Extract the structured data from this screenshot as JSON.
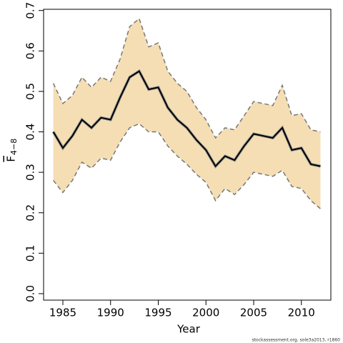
{
  "chart_data": {
    "type": "line-band",
    "xlabel": "Year",
    "ylabel": "F",
    "ylabel_sub": "4−8",
    "footnote": "stockassessment.org, sole3a2013, r1860",
    "x": [
      1984,
      1985,
      1986,
      1987,
      1988,
      1989,
      1990,
      1991,
      1992,
      1993,
      1994,
      1995,
      1996,
      1997,
      1998,
      1999,
      2000,
      2001,
      2002,
      2003,
      2004,
      2005,
      2006,
      2007,
      2008,
      2009,
      2010,
      2011,
      2012
    ],
    "values": [
      0.4,
      0.36,
      0.39,
      0.43,
      0.41,
      0.435,
      0.43,
      0.485,
      0.535,
      0.55,
      0.505,
      0.51,
      0.46,
      0.43,
      0.41,
      0.38,
      0.355,
      0.315,
      0.34,
      0.33,
      0.365,
      0.395,
      0.39,
      0.385,
      0.41,
      0.355,
      0.36,
      0.32,
      0.315
    ],
    "upper": [
      0.52,
      0.47,
      0.49,
      0.535,
      0.51,
      0.535,
      0.525,
      0.58,
      0.66,
      0.68,
      0.61,
      0.62,
      0.55,
      0.52,
      0.5,
      0.46,
      0.43,
      0.385,
      0.41,
      0.405,
      0.44,
      0.475,
      0.47,
      0.465,
      0.515,
      0.44,
      0.445,
      0.405,
      0.4
    ],
    "lower": [
      0.28,
      0.25,
      0.28,
      0.325,
      0.31,
      0.335,
      0.33,
      0.375,
      0.41,
      0.42,
      0.4,
      0.4,
      0.365,
      0.34,
      0.32,
      0.295,
      0.275,
      0.23,
      0.26,
      0.245,
      0.27,
      0.3,
      0.295,
      0.29,
      0.305,
      0.265,
      0.26,
      0.23,
      0.21
    ],
    "color": "#000000",
    "band_color": "#f5deb3",
    "band_line_color": "#777777",
    "xlim": [
      1982.98,
      2013.09
    ],
    "ylim": [
      -0.016,
      0.703
    ],
    "xticks": [
      1985,
      1990,
      1995,
      2000,
      2005,
      2010
    ],
    "yticks": [
      {
        "value": 0,
        "label": "0.0"
      },
      0.1,
      0.2,
      0.3,
      0.4,
      0.5,
      0.6,
      0.7
    ]
  }
}
